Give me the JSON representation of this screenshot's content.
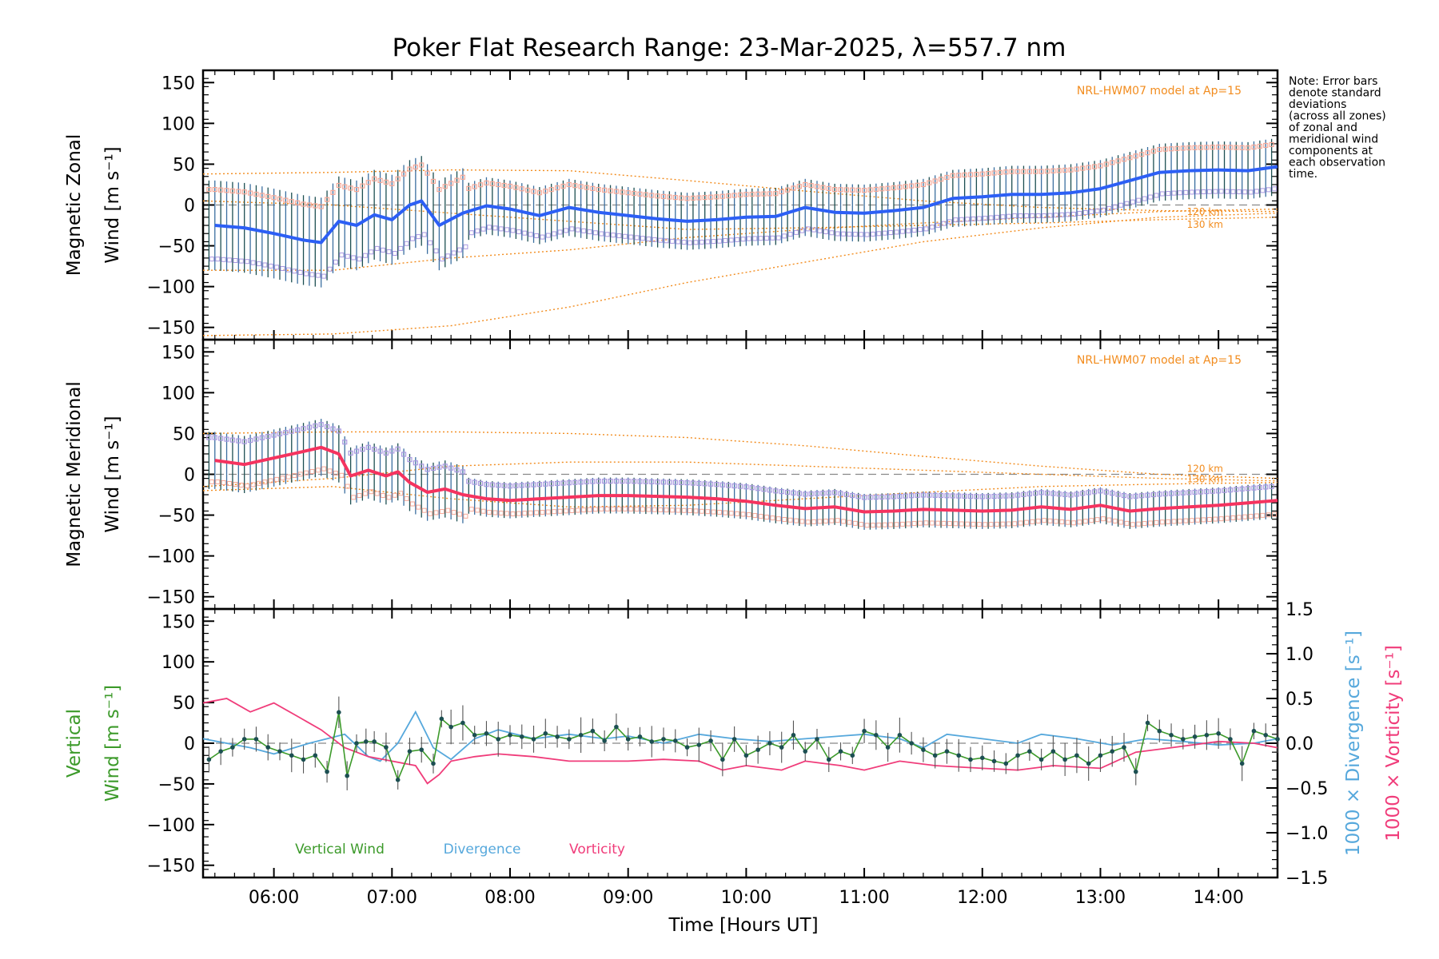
{
  "title": "Poker Flat Research Range: 23-Mar-2025, λ=557.7 nm",
  "note": {
    "lines": [
      "Note: Error bars",
      "denote standard",
      "deviations",
      "(across all zones)",
      "of zonal and",
      "meridional wind",
      "components at",
      "each observation",
      "time."
    ]
  },
  "x_axis": {
    "label": "Time [Hours UT]",
    "range": [
      5.4,
      14.5
    ],
    "ticks": [
      6,
      7,
      8,
      9,
      10,
      11,
      12,
      13,
      14
    ],
    "tick_labels": [
      "06:00",
      "07:00",
      "08:00",
      "09:00",
      "10:00",
      "11:00",
      "12:00",
      "13:00",
      "14:00"
    ]
  },
  "colors": {
    "zonal": "#2c5ff5",
    "meridional": "#f5335f",
    "vertical": "#3c9a2a",
    "divergence": "#56a8dc",
    "vorticity": "#f03c7a",
    "model": "#f28c1e",
    "errorbar": "#1c4f52",
    "zone_zonal": "#f5a898",
    "zone_meridional": "#a898e0"
  },
  "chart_data": [
    {
      "type": "line",
      "panel": "zonal",
      "ylabel_line1": "Magnetic Zonal",
      "ylabel_line2": "Wind [m s⁻¹]",
      "ylim": [
        -165,
        165
      ],
      "y_ticks": [
        -150,
        -100,
        -50,
        0,
        50,
        100,
        150
      ],
      "model_label": "NRL-HWM07 model at Ap=15",
      "model_alt_labels": [
        "120 km",
        "130 km"
      ],
      "x": [
        5.5,
        5.75,
        6.0,
        6.25,
        6.4,
        6.55,
        6.7,
        6.85,
        7.0,
        7.15,
        7.25,
        7.4,
        7.6,
        7.8,
        8.0,
        8.25,
        8.5,
        8.75,
        9.0,
        9.25,
        9.5,
        9.75,
        10.0,
        10.25,
        10.5,
        10.75,
        11.0,
        11.25,
        11.5,
        11.75,
        12.0,
        12.25,
        12.5,
        12.75,
        13.0,
        13.25,
        13.5,
        13.75,
        14.0,
        14.25,
        14.5
      ],
      "series": [
        {
          "name": "Magnetic Zonal Wind",
          "values": [
            -25,
            -28,
            -35,
            -43,
            -46,
            -20,
            -25,
            -12,
            -18,
            0,
            5,
            -25,
            -10,
            -1,
            -5,
            -13,
            -3,
            -9,
            -13,
            -17,
            -20,
            -18,
            -15,
            -14,
            -3,
            -9,
            -10,
            -7,
            -3,
            8,
            10,
            13,
            13,
            15,
            20,
            30,
            40,
            42,
            43,
            42,
            47
          ]
        },
        {
          "name": "NRL-HWM07 model",
          "lines": [
            {
              "x": [
                5.4,
                6.5,
                7.5,
                8.5,
                9.5,
                10.5,
                11.5,
                12.5,
                13.5,
                14.5
              ],
              "values": [
                38,
                40,
                43,
                42,
                30,
                17,
                5,
                -3,
                -7,
                -8
              ]
            },
            {
              "x": [
                5.4,
                6.5,
                7.5,
                8.5,
                9.5,
                10.5,
                11.5,
                12.5,
                13.5,
                14.5
              ],
              "values": [
                -80,
                -80,
                -65,
                -55,
                -40,
                -30,
                -22,
                -15,
                -8,
                -5
              ]
            },
            {
              "x": [
                5.4,
                6.5,
                7.5,
                8.5,
                9.5,
                10.5,
                11.5,
                12.5,
                13.5,
                14.5
              ],
              "values": [
                -160,
                -158,
                -148,
                -125,
                -95,
                -70,
                -45,
                -28,
                -15,
                -10
              ]
            },
            {
              "x": [
                5.4,
                6.5,
                7.5,
                8.5,
                9.5,
                10.5,
                11.5,
                12.5,
                13.5,
                14.5
              ],
              "values": [
                5,
                0,
                -10,
                -20,
                -30,
                -28,
                -25,
                -22,
                -18,
                -15
              ]
            }
          ]
        }
      ]
    },
    {
      "type": "line",
      "panel": "meridional",
      "ylabel_line1": "Magnetic Meridional",
      "ylabel_line2": "Wind [m s⁻¹]",
      "ylim": [
        -165,
        165
      ],
      "y_ticks": [
        -150,
        -100,
        -50,
        0,
        50,
        100,
        150
      ],
      "model_label": "NRL-HWM07 model at Ap=15",
      "model_alt_labels": [
        "120 km",
        "130 km"
      ],
      "x": [
        5.5,
        5.75,
        6.0,
        6.25,
        6.4,
        6.55,
        6.65,
        6.8,
        6.95,
        7.05,
        7.15,
        7.3,
        7.45,
        7.6,
        7.8,
        8.0,
        8.25,
        8.5,
        8.75,
        9.0,
        9.25,
        9.5,
        9.75,
        10.0,
        10.25,
        10.5,
        10.75,
        11.0,
        11.25,
        11.5,
        11.75,
        12.0,
        12.25,
        12.5,
        12.75,
        13.0,
        13.25,
        13.5,
        13.75,
        14.0,
        14.25,
        14.5
      ],
      "series": [
        {
          "name": "Magnetic Meridional Wind",
          "values": [
            17,
            12,
            20,
            28,
            33,
            25,
            -2,
            5,
            -2,
            3,
            -10,
            -22,
            -18,
            -25,
            -30,
            -32,
            -30,
            -28,
            -26,
            -26,
            -27,
            -28,
            -30,
            -33,
            -38,
            -42,
            -40,
            -46,
            -45,
            -43,
            -44,
            -45,
            -44,
            -40,
            -43,
            -38,
            -45,
            -42,
            -40,
            -38,
            -35,
            -32
          ]
        },
        {
          "name": "NRL-HWM07 model",
          "lines": [
            {
              "x": [
                5.4,
                6.5,
                7.5,
                8.5,
                9.5,
                10.5,
                11.5,
                12.5,
                13.5,
                14.5
              ],
              "values": [
                50,
                52,
                52,
                50,
                45,
                35,
                22,
                10,
                0,
                -5
              ]
            },
            {
              "x": [
                5.4,
                6.5,
                7.5,
                8.5,
                9.5,
                10.5,
                11.5,
                12.5,
                13.5,
                14.5
              ],
              "values": [
                -15,
                -5,
                10,
                15,
                15,
                10,
                5,
                0,
                -5,
                -8
              ]
            },
            {
              "x": [
                5.4,
                6.5,
                7.5,
                8.5,
                9.5,
                10.5,
                11.5,
                12.5,
                13.5,
                14.5
              ],
              "values": [
                -20,
                -15,
                -30,
                -40,
                -38,
                -30,
                -22,
                -15,
                -12,
                -10
              ]
            }
          ]
        }
      ]
    },
    {
      "type": "line",
      "panel": "vertical",
      "ylabel_line1": "Vertical",
      "ylabel_line2": "Wind [m s⁻¹]",
      "ylim": [
        -165,
        165
      ],
      "y_ticks": [
        -150,
        -100,
        -50,
        0,
        50,
        100,
        150
      ],
      "right_axis": {
        "ylim": [
          -1.5,
          1.5
        ],
        "ticks": [
          -1.5,
          -1.0,
          -0.5,
          0.0,
          0.5,
          1.0,
          1.5
        ],
        "tick_labels": [
          "−1.5",
          "−1.0",
          "−0.5",
          "0.0",
          "0.5",
          "1.0",
          "1.5"
        ],
        "label_divergence": "1000 × Divergence [s⁻¹]",
        "label_vorticity": "1000 × Vorticity [s⁻¹]"
      },
      "legend": [
        "Vertical Wind",
        "Divergence",
        "Vorticity"
      ],
      "x": [
        5.45,
        5.55,
        5.65,
        5.75,
        5.85,
        5.95,
        6.05,
        6.15,
        6.25,
        6.35,
        6.45,
        6.55,
        6.62,
        6.7,
        6.78,
        6.85,
        6.95,
        7.05,
        7.15,
        7.25,
        7.35,
        7.42,
        7.5,
        7.6,
        7.7,
        7.8,
        7.9,
        8.0,
        8.1,
        8.2,
        8.3,
        8.4,
        8.5,
        8.6,
        8.7,
        8.8,
        8.9,
        9.0,
        9.1,
        9.2,
        9.3,
        9.4,
        9.5,
        9.6,
        9.7,
        9.8,
        9.9,
        10.0,
        10.1,
        10.2,
        10.3,
        10.4,
        10.5,
        10.6,
        10.7,
        10.8,
        10.9,
        11.0,
        11.1,
        11.2,
        11.3,
        11.4,
        11.5,
        11.6,
        11.7,
        11.8,
        11.9,
        12.0,
        12.1,
        12.2,
        12.3,
        12.4,
        12.5,
        12.6,
        12.7,
        12.8,
        12.9,
        13.0,
        13.1,
        13.2,
        13.3,
        13.4,
        13.5,
        13.6,
        13.7,
        13.8,
        13.9,
        14.0,
        14.1,
        14.2,
        14.3,
        14.4,
        14.5
      ],
      "series": [
        {
          "name": "Vertical Wind",
          "values": [
            -20,
            -10,
            -5,
            5,
            5,
            -5,
            -10,
            -15,
            -20,
            -15,
            -35,
            38,
            -40,
            0,
            2,
            2,
            -5,
            -45,
            -10,
            -8,
            -25,
            30,
            20,
            25,
            10,
            12,
            5,
            10,
            8,
            5,
            12,
            8,
            5,
            10,
            15,
            3,
            20,
            5,
            8,
            2,
            5,
            3,
            -5,
            -2,
            3,
            -20,
            5,
            -15,
            -8,
            0,
            -5,
            10,
            -10,
            5,
            -20,
            -10,
            -15,
            15,
            10,
            -5,
            10,
            0,
            -8,
            -15,
            -10,
            -15,
            -20,
            -18,
            -22,
            -25,
            -15,
            -10,
            -20,
            -10,
            -20,
            -15,
            -25,
            -15,
            -10,
            -5,
            -35,
            25,
            15,
            10,
            5,
            8,
            10,
            12,
            5,
            -25,
            15,
            10,
            5
          ]
        },
        {
          "name": "Divergence",
          "x": [
            5.4,
            5.8,
            6.0,
            6.3,
            6.6,
            6.8,
            6.9,
            7.05,
            7.2,
            7.35,
            7.5,
            7.7,
            7.9,
            8.2,
            8.5,
            8.8,
            9.0,
            9.3,
            9.6,
            9.9,
            10.2,
            10.5,
            10.8,
            11.0,
            11.3,
            11.5,
            11.7,
            12.0,
            12.3,
            12.5,
            12.8,
            13.1,
            13.4,
            13.7,
            14.0,
            14.3,
            14.5
          ],
          "values": [
            0.05,
            -0.05,
            -0.12,
            0.0,
            0.1,
            -0.15,
            -0.2,
            0.0,
            0.35,
            -0.05,
            -0.18,
            0.05,
            0.15,
            0.05,
            0.1,
            0.05,
            0.08,
            0.0,
            0.1,
            0.05,
            0.02,
            0.05,
            0.08,
            0.1,
            0.05,
            -0.05,
            0.1,
            0.05,
            0.0,
            0.1,
            0.05,
            -0.02,
            0.05,
            0.02,
            -0.02,
            0.0,
            0.05
          ]
        },
        {
          "name": "Vorticity",
          "x": [
            5.4,
            5.6,
            5.8,
            6.0,
            6.2,
            6.4,
            6.6,
            6.8,
            7.0,
            7.2,
            7.3,
            7.4,
            7.5,
            7.7,
            7.9,
            8.2,
            8.5,
            8.8,
            9.0,
            9.3,
            9.6,
            9.8,
            10.0,
            10.3,
            10.5,
            10.8,
            11.0,
            11.3,
            11.6,
            12.0,
            12.3,
            12.6,
            13.0,
            13.3,
            13.6,
            14.0,
            14.3,
            14.5
          ],
          "values": [
            0.45,
            0.5,
            0.35,
            0.45,
            0.3,
            0.15,
            -0.05,
            -0.15,
            -0.2,
            -0.25,
            -0.45,
            -0.35,
            -0.2,
            -0.15,
            -0.12,
            -0.15,
            -0.2,
            -0.2,
            -0.2,
            -0.18,
            -0.2,
            -0.3,
            -0.25,
            -0.3,
            -0.2,
            -0.25,
            -0.3,
            -0.2,
            -0.25,
            -0.28,
            -0.3,
            -0.25,
            -0.28,
            -0.1,
            -0.05,
            0.02,
            0.0,
            -0.05
          ]
        }
      ]
    }
  ]
}
